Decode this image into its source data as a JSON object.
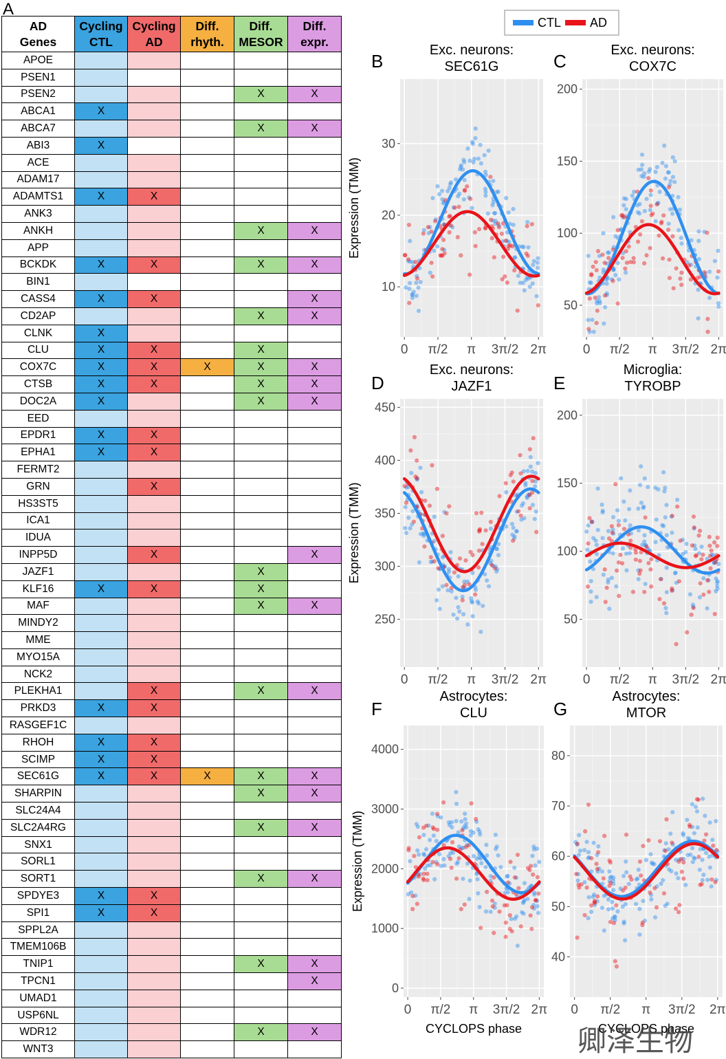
{
  "panel_a": {
    "letter": "A",
    "headers": [
      {
        "line1": "AD",
        "line2": "Genes",
        "color": "#ffffff"
      },
      {
        "line1": "Cycling",
        "line2": "CTL",
        "color": "#3aa3e0"
      },
      {
        "line1": "Cycling",
        "line2": "AD",
        "color": "#f06a6a"
      },
      {
        "line1": "Diff.",
        "line2": "rhyth.",
        "color": "#f5b041"
      },
      {
        "line1": "Diff.",
        "line2": "MESOR",
        "color": "#a8dc94"
      },
      {
        "line1": "Diff.",
        "line2": "expr.",
        "color": "#dc9ce2"
      }
    ],
    "colors": {
      "ctl_on": "#3aa3e0",
      "ctl_off": "#c3e1f4",
      "ad_on": "#f06a6a",
      "ad_off": "#fbd0d2",
      "rhyth_on": "#f5b041",
      "mesor_on": "#a8dc94",
      "expr_on": "#dc9ce2",
      "blank": "#ffffff"
    },
    "mark": "X",
    "rows": [
      {
        "gene": "APOE",
        "ctl": 0,
        "ad": 0,
        "rh": 0,
        "me": 0,
        "ex": 0
      },
      {
        "gene": "PSEN1",
        "ctl": 0,
        "ad": -1,
        "rh": 0,
        "me": 0,
        "ex": 0
      },
      {
        "gene": "PSEN2",
        "ctl": 0,
        "ad": 0,
        "rh": 0,
        "me": 1,
        "ex": 1
      },
      {
        "gene": "ABCA1",
        "ctl": 1,
        "ad": 0,
        "rh": 0,
        "me": 0,
        "ex": 0
      },
      {
        "gene": "ABCA7",
        "ctl": 0,
        "ad": 0,
        "rh": 0,
        "me": 1,
        "ex": 1
      },
      {
        "gene": "ABI3",
        "ctl": 1,
        "ad": -1,
        "rh": 0,
        "me": 0,
        "ex": 0
      },
      {
        "gene": "ACE",
        "ctl": 0,
        "ad": 0,
        "rh": 0,
        "me": 0,
        "ex": 0
      },
      {
        "gene": "ADAM17",
        "ctl": 0,
        "ad": 0,
        "rh": 0,
        "me": 0,
        "ex": 0
      },
      {
        "gene": "ADAMTS1",
        "ctl": 1,
        "ad": 1,
        "rh": 0,
        "me": 0,
        "ex": 0
      },
      {
        "gene": "ANK3",
        "ctl": 0,
        "ad": 0,
        "rh": 0,
        "me": 0,
        "ex": 0
      },
      {
        "gene": "ANKH",
        "ctl": 0,
        "ad": 0,
        "rh": 0,
        "me": 1,
        "ex": 1
      },
      {
        "gene": "APP",
        "ctl": 0,
        "ad": 0,
        "rh": 0,
        "me": 0,
        "ex": 0
      },
      {
        "gene": "BCKDK",
        "ctl": 1,
        "ad": 1,
        "rh": 0,
        "me": 1,
        "ex": 1
      },
      {
        "gene": "BIN1",
        "ctl": 0,
        "ad": -1,
        "rh": 0,
        "me": 0,
        "ex": 0
      },
      {
        "gene": "CASS4",
        "ctl": 1,
        "ad": 1,
        "rh": 0,
        "me": 0,
        "ex": 1
      },
      {
        "gene": "CD2AP",
        "ctl": 0,
        "ad": 0,
        "rh": 0,
        "me": 1,
        "ex": 1
      },
      {
        "gene": "CLNK",
        "ctl": 1,
        "ad": 0,
        "rh": 0,
        "me": 0,
        "ex": 0
      },
      {
        "gene": "CLU",
        "ctl": 1,
        "ad": 1,
        "rh": 0,
        "me": 1,
        "ex": 0
      },
      {
        "gene": "COX7C",
        "ctl": 1,
        "ad": 1,
        "rh": 1,
        "me": 1,
        "ex": 1
      },
      {
        "gene": "CTSB",
        "ctl": 1,
        "ad": 1,
        "rh": 0,
        "me": 1,
        "ex": 1
      },
      {
        "gene": "DOC2A",
        "ctl": 1,
        "ad": 0,
        "rh": 0,
        "me": 1,
        "ex": 1
      },
      {
        "gene": "EED",
        "ctl": 0,
        "ad": 0,
        "rh": 0,
        "me": 0,
        "ex": 0
      },
      {
        "gene": "EPDR1",
        "ctl": 1,
        "ad": 1,
        "rh": 0,
        "me": 0,
        "ex": 0
      },
      {
        "gene": "EPHA1",
        "ctl": 1,
        "ad": 1,
        "rh": 0,
        "me": 0,
        "ex": 0
      },
      {
        "gene": "FERMT2",
        "ctl": 0,
        "ad": 0,
        "rh": 0,
        "me": 0,
        "ex": 0
      },
      {
        "gene": "GRN",
        "ctl": 0,
        "ad": 1,
        "rh": 0,
        "me": 0,
        "ex": 0
      },
      {
        "gene": "HS3ST5",
        "ctl": 0,
        "ad": 0,
        "rh": 0,
        "me": 0,
        "ex": 0
      },
      {
        "gene": "ICA1",
        "ctl": 0,
        "ad": 0,
        "rh": 0,
        "me": 0,
        "ex": 0
      },
      {
        "gene": "IDUA",
        "ctl": 0,
        "ad": 0,
        "rh": 0,
        "me": 0,
        "ex": 0
      },
      {
        "gene": "INPP5D",
        "ctl": 0,
        "ad": 1,
        "rh": 0,
        "me": 0,
        "ex": 1
      },
      {
        "gene": "JAZF1",
        "ctl": 0,
        "ad": 0,
        "rh": 0,
        "me": 1,
        "ex": 0
      },
      {
        "gene": "KLF16",
        "ctl": 1,
        "ad": 1,
        "rh": 0,
        "me": 1,
        "ex": 0
      },
      {
        "gene": "MAF",
        "ctl": 0,
        "ad": 0,
        "rh": 0,
        "me": 1,
        "ex": 1
      },
      {
        "gene": "MINDY2",
        "ctl": 0,
        "ad": 0,
        "rh": 0,
        "me": 0,
        "ex": 0
      },
      {
        "gene": "MME",
        "ctl": 0,
        "ad": 0,
        "rh": 0,
        "me": 0,
        "ex": 0
      },
      {
        "gene": "MYO15A",
        "ctl": 0,
        "ad": 0,
        "rh": 0,
        "me": 0,
        "ex": 0
      },
      {
        "gene": "NCK2",
        "ctl": 0,
        "ad": 0,
        "rh": 0,
        "me": 0,
        "ex": 0
      },
      {
        "gene": "PLEKHA1",
        "ctl": 0,
        "ad": 1,
        "rh": 0,
        "me": 1,
        "ex": 1
      },
      {
        "gene": "PRKD3",
        "ctl": 1,
        "ad": 1,
        "rh": 0,
        "me": 0,
        "ex": 0
      },
      {
        "gene": "RASGEF1C",
        "ctl": 0,
        "ad": 0,
        "rh": 0,
        "me": 0,
        "ex": 0
      },
      {
        "gene": "RHOH",
        "ctl": 1,
        "ad": 1,
        "rh": 0,
        "me": 0,
        "ex": 0
      },
      {
        "gene": "SCIMP",
        "ctl": 1,
        "ad": 1,
        "rh": 0,
        "me": 0,
        "ex": 0
      },
      {
        "gene": "SEC61G",
        "ctl": 1,
        "ad": 1,
        "rh": 1,
        "me": 1,
        "ex": 1
      },
      {
        "gene": "SHARPIN",
        "ctl": 0,
        "ad": 0,
        "rh": 0,
        "me": 1,
        "ex": 1
      },
      {
        "gene": "SLC24A4",
        "ctl": 0,
        "ad": 0,
        "rh": 0,
        "me": 0,
        "ex": 0
      },
      {
        "gene": "SLC2A4RG",
        "ctl": 0,
        "ad": 0,
        "rh": 0,
        "me": 1,
        "ex": 1
      },
      {
        "gene": "SNX1",
        "ctl": 0,
        "ad": 0,
        "rh": 0,
        "me": 0,
        "ex": 0
      },
      {
        "gene": "SORL1",
        "ctl": 0,
        "ad": 0,
        "rh": 0,
        "me": 0,
        "ex": 0
      },
      {
        "gene": "SORT1",
        "ctl": 0,
        "ad": 0,
        "rh": 0,
        "me": 1,
        "ex": 1
      },
      {
        "gene": "SPDYE3",
        "ctl": 1,
        "ad": 1,
        "rh": 0,
        "me": 0,
        "ex": 0
      },
      {
        "gene": "SPI1",
        "ctl": 1,
        "ad": 1,
        "rh": 0,
        "me": 0,
        "ex": 0
      },
      {
        "gene": "SPPL2A",
        "ctl": 0,
        "ad": 0,
        "rh": 0,
        "me": 0,
        "ex": 0
      },
      {
        "gene": "TMEM106B",
        "ctl": 0,
        "ad": 0,
        "rh": 0,
        "me": 0,
        "ex": 0
      },
      {
        "gene": "TNIP1",
        "ctl": 0,
        "ad": 0,
        "rh": 0,
        "me": 1,
        "ex": 1
      },
      {
        "gene": "TPCN1",
        "ctl": 0,
        "ad": 0,
        "rh": 0,
        "me": 0,
        "ex": 1
      },
      {
        "gene": "UMAD1",
        "ctl": 0,
        "ad": 0,
        "rh": 0,
        "me": 0,
        "ex": 0
      },
      {
        "gene": "USP6NL",
        "ctl": 0,
        "ad": 0,
        "rh": 0,
        "me": 0,
        "ex": 0
      },
      {
        "gene": "WDR12",
        "ctl": 0,
        "ad": 0,
        "rh": 0,
        "me": 1,
        "ex": 1
      },
      {
        "gene": "WNT3",
        "ctl": 0,
        "ad": 0,
        "rh": 0,
        "me": 0,
        "ex": 0
      }
    ]
  },
  "legend": {
    "entries": [
      {
        "label": "CTL",
        "color": "#2f8ff0"
      },
      {
        "label": "AD",
        "color": "#e8141a"
      }
    ]
  },
  "chart_data": [
    {
      "letter": "B",
      "type": "scatter",
      "title": "Exc. neurons:",
      "subtitle": "SEC61G",
      "ylabel": "Expression (TMM)",
      "xlabel": "",
      "ylim": [
        3,
        39
      ],
      "yticks": [
        10,
        20,
        30
      ],
      "xlim": [
        -0.2,
        6.5
      ],
      "xticks": [
        {
          "v": 0,
          "label": "0"
        },
        {
          "v": 1.5708,
          "label": "π/2"
        },
        {
          "v": 3.1416,
          "label": "π"
        },
        {
          "v": 4.7124,
          "label": "3π/2"
        },
        {
          "v": 6.2832,
          "label": "2π"
        }
      ],
      "series": [
        {
          "name": "CTL",
          "mesor": 19.0,
          "amp": 7.2,
          "peak": 3.2,
          "spread": 3.6,
          "n": 150
        },
        {
          "name": "AD",
          "mesor": 16.0,
          "amp": 4.5,
          "peak": 2.95,
          "spread": 4.2,
          "n": 80
        }
      ]
    },
    {
      "letter": "C",
      "type": "scatter",
      "title": "Exc. neurons:",
      "subtitle": "COX7C",
      "ylabel": "",
      "xlabel": "",
      "ylim": [
        28,
        207
      ],
      "yticks": [
        50,
        100,
        150,
        200
      ],
      "xlim": [
        -0.2,
        6.5
      ],
      "xticks": [
        {
          "v": 0,
          "label": "0"
        },
        {
          "v": 1.5708,
          "label": "π/2"
        },
        {
          "v": 3.1416,
          "label": "π"
        },
        {
          "v": 4.7124,
          "label": "3π/2"
        },
        {
          "v": 6.2832,
          "label": "2π"
        }
      ],
      "series": [
        {
          "name": "CTL",
          "mesor": 97,
          "amp": 39,
          "peak": 3.2,
          "spread": 20,
          "n": 150
        },
        {
          "name": "AD",
          "mesor": 82,
          "amp": 24,
          "peak": 2.95,
          "spread": 24,
          "n": 80
        }
      ]
    },
    {
      "letter": "D",
      "type": "scatter",
      "title": "Exc. neurons:",
      "subtitle": "JAZF1",
      "ylabel": "Expression (TMM)",
      "xlabel": "",
      "ylim": [
        205,
        458
      ],
      "yticks": [
        250,
        300,
        350,
        400,
        450
      ],
      "xlim": [
        -0.2,
        6.5
      ],
      "xticks": [
        {
          "v": 0,
          "label": "0"
        },
        {
          "v": 1.5708,
          "label": "π/2"
        },
        {
          "v": 3.1416,
          "label": "π"
        },
        {
          "v": 4.7124,
          "label": "3π/2"
        },
        {
          "v": 6.2832,
          "label": "2π"
        }
      ],
      "series": [
        {
          "name": "CTL",
          "mesor": 325,
          "amp": 48,
          "peak": 5.9,
          "spread": 30,
          "n": 150
        },
        {
          "name": "AD",
          "mesor": 340,
          "amp": 45,
          "peak": 5.95,
          "spread": 34,
          "n": 80
        }
      ]
    },
    {
      "letter": "E",
      "type": "scatter",
      "title": "Microglia:",
      "subtitle": "TYROBP",
      "ylabel": "",
      "xlabel": "",
      "ylim": [
        15,
        212
      ],
      "yticks": [
        50,
        100,
        150,
        200
      ],
      "xlim": [
        -0.2,
        6.5
      ],
      "xticks": [
        {
          "v": 0,
          "label": "0"
        },
        {
          "v": 1.5708,
          "label": "π/2"
        },
        {
          "v": 3.1416,
          "label": "π"
        },
        {
          "v": 4.7124,
          "label": "3π/2"
        },
        {
          "v": 6.2832,
          "label": "2π"
        }
      ],
      "series": [
        {
          "name": "CTL",
          "mesor": 101,
          "amp": 17,
          "peak": 2.6,
          "spread": 28,
          "n": 150
        },
        {
          "name": "AD",
          "mesor": 97,
          "amp": 9,
          "peak": 1.6,
          "spread": 30,
          "n": 80
        }
      ]
    },
    {
      "letter": "F",
      "type": "scatter",
      "title": "Astrocytes:",
      "subtitle": "CLU",
      "ylabel": "Expression (TMM)",
      "xlabel": "CYCLOPS phase",
      "ylim": [
        -150,
        4400
      ],
      "yticks": [
        0,
        1000,
        2000,
        3000,
        4000
      ],
      "xlim": [
        -0.2,
        6.5
      ],
      "xticks": [
        {
          "v": 0,
          "label": "0"
        },
        {
          "v": 1.5708,
          "label": "π/2"
        },
        {
          "v": 3.1416,
          "label": "π"
        },
        {
          "v": 4.7124,
          "label": "3π/2"
        },
        {
          "v": 6.2832,
          "label": "2π"
        }
      ],
      "series": [
        {
          "name": "CTL",
          "mesor": 2080,
          "amp": 480,
          "peak": 2.3,
          "spread": 520,
          "n": 150
        },
        {
          "name": "AD",
          "mesor": 1920,
          "amp": 430,
          "peak": 1.9,
          "spread": 600,
          "n": 80
        }
      ]
    },
    {
      "letter": "G",
      "type": "scatter",
      "title": "Astrocytes:",
      "subtitle": "MTOR",
      "ylabel": "",
      "xlabel": "CYCLOPS phase",
      "ylim": [
        32,
        86
      ],
      "yticks": [
        40,
        50,
        60,
        70,
        80
      ],
      "xlim": [
        -0.2,
        6.5
      ],
      "xticks": [
        {
          "v": 0,
          "label": "0"
        },
        {
          "v": 1.5708,
          "label": "π/2"
        },
        {
          "v": 3.1416,
          "label": "π"
        },
        {
          "v": 4.7124,
          "label": "3π/2"
        },
        {
          "v": 6.2832,
          "label": "2π"
        }
      ],
      "series": [
        {
          "name": "CTL",
          "mesor": 57.5,
          "amp": 5.5,
          "peak": 5.2,
          "spread": 6.5,
          "n": 150
        },
        {
          "name": "AD",
          "mesor": 57.0,
          "amp": 5.5,
          "peak": 5.25,
          "spread": 8,
          "n": 80
        }
      ]
    }
  ],
  "watermark": "卿泽生物"
}
